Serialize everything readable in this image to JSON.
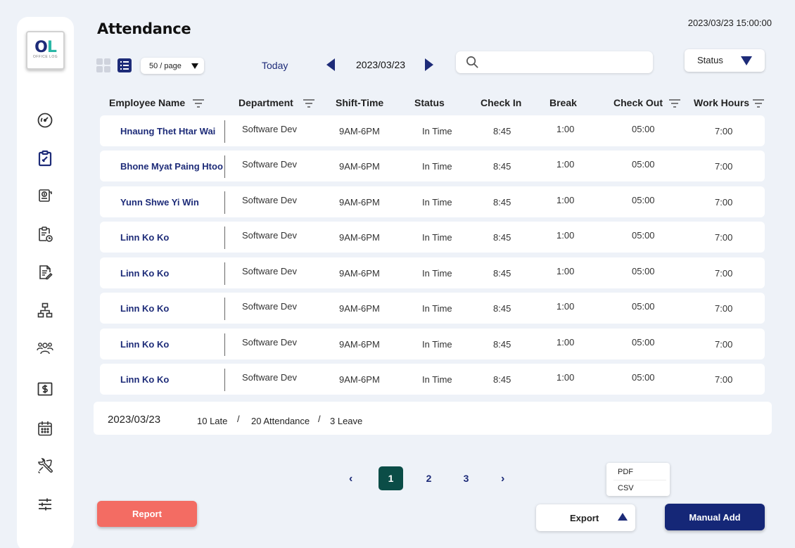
{
  "app": {
    "logo_text": "OL",
    "logo_subtext": "OFFICE LOG",
    "brand_colors": {
      "primary": "#1d2b78",
      "accent": "#2bb7a6",
      "report": "#f36c63",
      "active_page": "#0b4d47"
    }
  },
  "sidebar": {
    "items": [
      {
        "icon": "dashboard-gauge-icon"
      },
      {
        "icon": "attendance-clipboard-icon",
        "active": true
      },
      {
        "icon": "payroll-money-icon"
      },
      {
        "icon": "schedule-clipboard-clock-icon"
      },
      {
        "icon": "document-edit-icon"
      },
      {
        "icon": "org-chart-icon"
      },
      {
        "icon": "employees-group-icon"
      },
      {
        "icon": "salary-dollar-icon"
      },
      {
        "icon": "calendar-icon"
      },
      {
        "icon": "tools-icon"
      },
      {
        "icon": "settings-sliders-icon"
      }
    ]
  },
  "header": {
    "title": "Attendance",
    "datetime": "2023/03/23 15:00:00"
  },
  "toolbar": {
    "per_page": "50 / page",
    "today_label": "Today",
    "current_date": "2023/03/23",
    "search_placeholder": "",
    "status_label": "Status"
  },
  "table": {
    "columns": {
      "employee_name": "Employee Name",
      "department": "Department",
      "shift_time": "Shift-Time",
      "status": "Status",
      "check_in": "Check In",
      "break": "Break",
      "check_out": "Check Out",
      "work_hours": "Work Hours"
    },
    "rows": [
      {
        "name": "Hnaung Thet Htar Wai",
        "department": "Software Dev",
        "shift": "9AM-6PM",
        "status": "In Time",
        "check_in": "8:45",
        "break": "1:00",
        "check_out": "05:00",
        "work_hours": "7:00"
      },
      {
        "name": "Bhone Myat Paing Htoo",
        "department": "Software Dev",
        "shift": "9AM-6PM",
        "status": "In Time",
        "check_in": "8:45",
        "break": "1:00",
        "check_out": "05:00",
        "work_hours": "7:00"
      },
      {
        "name": "Yunn Shwe Yi Win",
        "department": "Software Dev",
        "shift": "9AM-6PM",
        "status": "In Time",
        "check_in": "8:45",
        "break": "1:00",
        "check_out": "05:00",
        "work_hours": "7:00"
      },
      {
        "name": "Linn Ko Ko",
        "department": "Software Dev",
        "shift": "9AM-6PM",
        "status": "In Time",
        "check_in": "8:45",
        "break": "1:00",
        "check_out": "05:00",
        "work_hours": "7:00"
      },
      {
        "name": "Linn Ko Ko",
        "department": "Software Dev",
        "shift": "9AM-6PM",
        "status": "In Time",
        "check_in": "8:45",
        "break": "1:00",
        "check_out": "05:00",
        "work_hours": "7:00"
      },
      {
        "name": "Linn Ko Ko",
        "department": "Software Dev",
        "shift": "9AM-6PM",
        "status": "In Time",
        "check_in": "8:45",
        "break": "1:00",
        "check_out": "05:00",
        "work_hours": "7:00"
      },
      {
        "name": "Linn Ko Ko",
        "department": "Software Dev",
        "shift": "9AM-6PM",
        "status": "In Time",
        "check_in": "8:45",
        "break": "1:00",
        "check_out": "05:00",
        "work_hours": "7:00"
      },
      {
        "name": "Linn Ko Ko",
        "department": "Software Dev",
        "shift": "9AM-6PM",
        "status": "In Time",
        "check_in": "8:45",
        "break": "1:00",
        "check_out": "05:00",
        "work_hours": "7:00"
      }
    ]
  },
  "summary": {
    "date": "2023/03/23",
    "late": "10 Late",
    "separator": "/",
    "attendance": "20 Attendance",
    "leave": "3 Leave"
  },
  "pagination": {
    "prev": "‹",
    "next": "›",
    "pages": [
      "1",
      "2",
      "3"
    ],
    "current": "1"
  },
  "export_menu": {
    "options": [
      "PDF",
      "CSV"
    ]
  },
  "actions": {
    "report": "Report",
    "export": "Export",
    "manual_add": "Manual Add"
  }
}
